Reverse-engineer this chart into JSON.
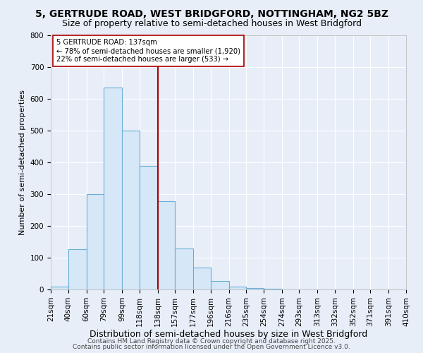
{
  "title1": "5, GERTRUDE ROAD, WEST BRIDGFORD, NOTTINGHAM, NG2 5BZ",
  "title2": "Size of property relative to semi-detached houses in West Bridgford",
  "xlabel": "Distribution of semi-detached houses by size in West Bridgford",
  "ylabel": "Number of semi-detached properties",
  "bar_labels": [
    "21sqm",
    "40sqm",
    "60sqm",
    "79sqm",
    "99sqm",
    "118sqm",
    "138sqm",
    "157sqm",
    "177sqm",
    "196sqm",
    "216sqm",
    "235sqm",
    "254sqm",
    "274sqm",
    "293sqm",
    "313sqm",
    "332sqm",
    "352sqm",
    "371sqm",
    "391sqm",
    "410sqm"
  ],
  "bar_values": [
    8,
    127,
    300,
    635,
    500,
    388,
    278,
    130,
    70,
    27,
    10,
    5,
    3,
    0,
    0,
    0,
    0,
    0,
    0,
    0,
    0
  ],
  "bin_edges": [
    21,
    40,
    60,
    79,
    99,
    118,
    138,
    157,
    177,
    196,
    216,
    235,
    254,
    274,
    293,
    313,
    332,
    352,
    371,
    391,
    410
  ],
  "bar_fill_color": "#d6e8f7",
  "bar_edge_color": "#6aaed6",
  "vline_x": 138,
  "vline_color": "#aa0000",
  "annotation_title": "5 GERTRUDE ROAD: 137sqm",
  "annotation_line1": "← 78% of semi-detached houses are smaller (1,920)",
  "annotation_line2": "22% of semi-detached houses are larger (533) →",
  "annotation_box_color": "#ffffff",
  "annotation_box_edge_color": "#aa0000",
  "ylim": [
    0,
    800
  ],
  "yticks": [
    0,
    100,
    200,
    300,
    400,
    500,
    600,
    700,
    800
  ],
  "background_color": "#e8eef8",
  "footer1": "Contains HM Land Registry data © Crown copyright and database right 2025.",
  "footer2": "Contains public sector information licensed under the Open Government Licence v3.0.",
  "title1_fontsize": 10,
  "title2_fontsize": 9,
  "xlabel_fontsize": 9,
  "ylabel_fontsize": 8,
  "tick_fontsize": 7.5,
  "footer_fontsize": 6.5
}
